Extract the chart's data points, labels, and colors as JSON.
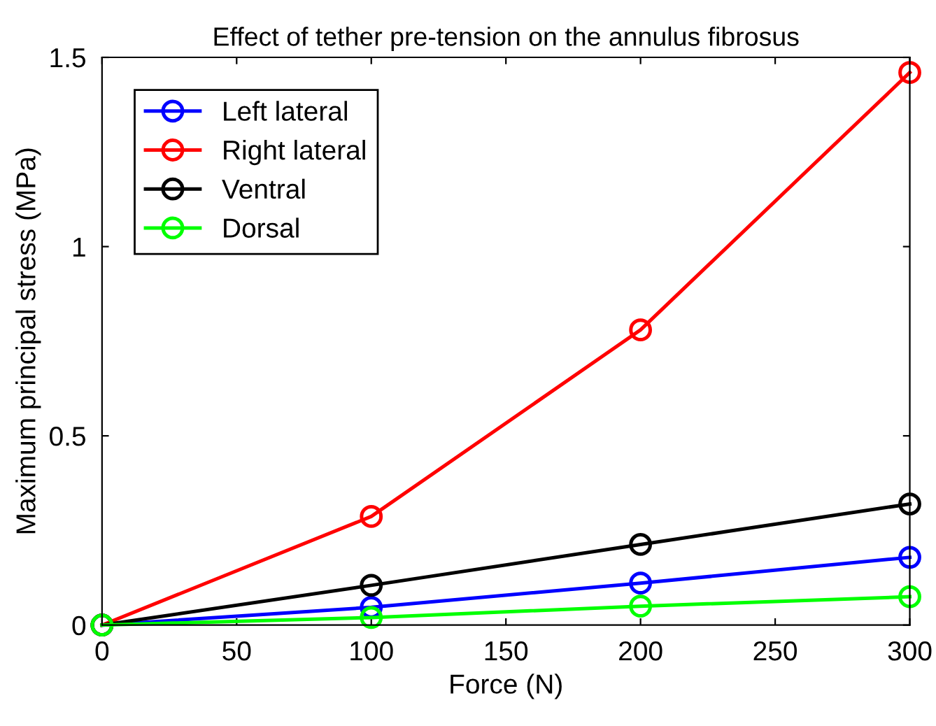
{
  "chart_data": {
    "type": "line",
    "title": "Effect of tether pre-tension on the annulus fibrosus",
    "xlabel": "Force (N)",
    "ylabel": "Maximum principal stress (MPa)",
    "x": [
      0,
      100,
      200,
      300
    ],
    "series": [
      {
        "name": "Left lateral",
        "color": "#0000ff",
        "values": [
          0,
          0.047,
          0.111,
          0.179
        ]
      },
      {
        "name": "Right lateral",
        "color": "#ff0000",
        "values": [
          0,
          0.287,
          0.78,
          1.46
        ]
      },
      {
        "name": "Ventral",
        "color": "#000000",
        "values": [
          0,
          0.105,
          0.213,
          0.32
        ]
      },
      {
        "name": "Dorsal",
        "color": "#00ff00",
        "values": [
          0,
          0.02,
          0.05,
          0.075
        ]
      }
    ],
    "xlim": [
      0,
      300
    ],
    "xticks": [
      0,
      50,
      100,
      150,
      200,
      250,
      300
    ],
    "ylim": [
      0,
      1.5
    ],
    "yticks": [
      0,
      0.5,
      1,
      1.5
    ],
    "marker": "circle",
    "line_style": "solid",
    "legend": "top left",
    "grid": false
  }
}
